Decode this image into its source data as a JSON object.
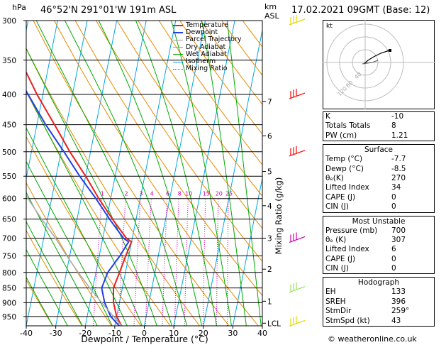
{
  "header": {
    "location": "46°52'N  291°01'W  191m  ASL",
    "datetime": "17.02.2021  09GMT  (Base: 12)",
    "hpa_label": "hPa",
    "km_label": "km",
    "asl_label": "ASL"
  },
  "footer": {
    "copyright": "© weatheronline.co.uk"
  },
  "legend": {
    "items": [
      {
        "label": "Temperature",
        "color": "#e8201f"
      },
      {
        "label": "Dewpoint",
        "color": "#1f3fe8"
      },
      {
        "label": "Parcel Trajectory",
        "color": "#999999"
      },
      {
        "label": "Dry Adiabat",
        "color": "#e88a00"
      },
      {
        "label": "Wet Adiabat",
        "color": "#00aa00"
      },
      {
        "label": "Isotherm",
        "color": "#00a6e6"
      },
      {
        "label": "Mixing Ratio",
        "color": "#cc00aa"
      }
    ]
  },
  "chart_data": {
    "type": "line",
    "title": "",
    "xlabel": "Dewpoint / Temperature (°C)",
    "ylabel": "hPa",
    "ylabel_right": "Mixing Ratio (g/kg)",
    "xlim": [
      -40,
      40
    ],
    "x_ticks": [
      -40,
      -30,
      -20,
      -10,
      0,
      10,
      20,
      30,
      40
    ],
    "ylim": [
      300,
      985
    ],
    "pressure_ticks": [
      300,
      350,
      400,
      450,
      500,
      550,
      600,
      650,
      700,
      750,
      800,
      850,
      900,
      950
    ],
    "km_ticks": [
      {
        "label": "7",
        "p": 411
      },
      {
        "label": "6",
        "p": 470
      },
      {
        "label": "5",
        "p": 540
      },
      {
        "label": "4",
        "p": 617
      },
      {
        "label": "3",
        "p": 700
      },
      {
        "label": "2",
        "p": 790
      },
      {
        "label": "1",
        "p": 895
      },
      {
        "label": "LCL",
        "p": 975
      }
    ],
    "mixing_ratio_labels": [
      "1",
      "2",
      "3",
      "4",
      "6",
      "8",
      "10",
      "15",
      "20",
      "25"
    ],
    "mixing_ratio_values": [
      1,
      2,
      3,
      4,
      6,
      8,
      10,
      15,
      20,
      25
    ],
    "skew_deg_per_decade": 40,
    "series": [
      {
        "name": "Temperature",
        "points": [
          [
            985,
            -7.7
          ],
          [
            950,
            -10
          ],
          [
            900,
            -12
          ],
          [
            850,
            -13
          ],
          [
            800,
            -12
          ],
          [
            750,
            -11
          ],
          [
            710,
            -10
          ],
          [
            700,
            -12
          ],
          [
            650,
            -18
          ],
          [
            600,
            -24
          ],
          [
            550,
            -30
          ],
          [
            500,
            -37
          ],
          [
            450,
            -44
          ],
          [
            400,
            -52
          ],
          [
            350,
            -60
          ],
          [
            300,
            -66
          ]
        ]
      },
      {
        "name": "Dewpoint",
        "points": [
          [
            985,
            -8.5
          ],
          [
            950,
            -12
          ],
          [
            900,
            -15
          ],
          [
            850,
            -17
          ],
          [
            800,
            -16
          ],
          [
            750,
            -13
          ],
          [
            710,
            -11
          ],
          [
            700,
            -13
          ],
          [
            650,
            -19
          ],
          [
            600,
            -25
          ],
          [
            550,
            -32
          ],
          [
            500,
            -39
          ],
          [
            450,
            -47
          ],
          [
            400,
            -55
          ],
          [
            350,
            -64
          ],
          [
            300,
            -72
          ]
        ]
      },
      {
        "name": "Parcel Trajectory",
        "points": [
          [
            985,
            -7.7
          ],
          [
            950,
            -11
          ],
          [
            900,
            -16
          ],
          [
            850,
            -21
          ],
          [
            800,
            -26
          ],
          [
            750,
            -31
          ],
          [
            700,
            -36
          ],
          [
            650,
            -42
          ],
          [
            600,
            -48
          ],
          [
            550,
            -54
          ],
          [
            500,
            -61
          ],
          [
            450,
            -68
          ],
          [
            400,
            -75
          ],
          [
            350,
            -83
          ],
          [
            300,
            -90
          ]
        ]
      }
    ]
  },
  "hodograph": {
    "units": "kt",
    "ring_labels": [
      "40",
      "80",
      "120"
    ]
  },
  "indices": {
    "rows": [
      {
        "label": "K",
        "value": "-10"
      },
      {
        "label": "Totals Totals",
        "value": "8"
      },
      {
        "label": "PW (cm)",
        "value": "1.21"
      }
    ]
  },
  "surface": {
    "title": "Surface",
    "rows": [
      {
        "label": "Temp (°C)",
        "value": "-7.7"
      },
      {
        "label": "Dewp (°C)",
        "value": "-8.5"
      },
      {
        "label": "θₑ(K)",
        "value": "270"
      },
      {
        "label": "Lifted Index",
        "value": "34"
      },
      {
        "label": "CAPE (J)",
        "value": "0"
      },
      {
        "label": "CIN (J)",
        "value": "0"
      }
    ]
  },
  "most_unstable": {
    "title": "Most Unstable",
    "rows": [
      {
        "label": "Pressure (mb)",
        "value": "700"
      },
      {
        "label": "θₑ (K)",
        "value": "307"
      },
      {
        "label": "Lifted Index",
        "value": "6"
      },
      {
        "label": "CAPE (J)",
        "value": "0"
      },
      {
        "label": "CIN (J)",
        "value": "0"
      }
    ]
  },
  "hodograph_table": {
    "title": "Hodograph",
    "rows": [
      {
        "label": "EH",
        "value": "133"
      },
      {
        "label": "SREH",
        "value": "396"
      },
      {
        "label": "StmDir",
        "value": "259°"
      },
      {
        "label": "StmSpd (kt)",
        "value": "43"
      }
    ]
  }
}
